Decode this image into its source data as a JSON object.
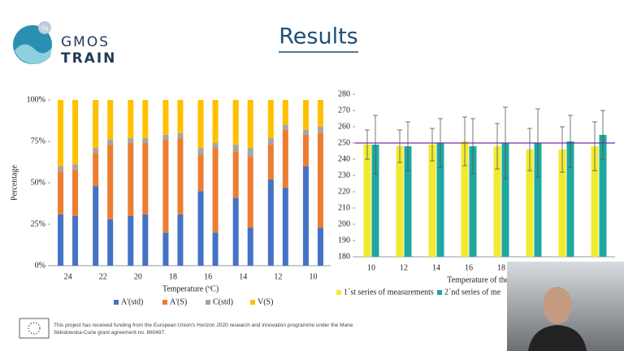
{
  "slide": {
    "title": "Results",
    "logo_badge": "Hg",
    "logo_top": "GMOS",
    "logo_bottom": "TRAIN",
    "footer": "This project has received funding from the European Union's Horizon 2020 research and innovation programme under the Marie Skłodowska-Curie grant agreement no. 860497."
  },
  "chart_data": [
    {
      "type": "stacked_bar",
      "x_label": "Temperature (ºC)",
      "y_label": "Percentage",
      "categories": [
        "24",
        "22",
        "20",
        "18",
        "16",
        "14",
        "12",
        "10"
      ],
      "ylim": [
        0,
        100
      ],
      "yticks": [
        {
          "value": 0,
          "label": "0%"
        },
        {
          "value": 25,
          "label": "25%"
        },
        {
          "value": 50,
          "label": "50%"
        },
        {
          "value": 75,
          "label": "75%"
        },
        {
          "value": 100,
          "label": "100%"
        }
      ],
      "series": [
        {
          "name": "A'(std)",
          "color": "#4472c4",
          "values": [
            [
              31,
              30
            ],
            [
              48,
              28
            ],
            [
              30,
              31
            ],
            [
              20,
              31
            ],
            [
              45,
              20
            ],
            [
              41,
              23
            ],
            [
              52,
              47
            ],
            [
              60,
              23
            ]
          ]
        },
        {
          "name": "A'(S)",
          "color": "#ed7d31",
          "values": [
            [
              26,
              28
            ],
            [
              20,
              45
            ],
            [
              44,
              43
            ],
            [
              56,
              46
            ],
            [
              22,
              51
            ],
            [
              28,
              43
            ],
            [
              21,
              35
            ],
            [
              19,
              57
            ]
          ]
        },
        {
          "name": "C(std)",
          "color": "#a5a5a5",
          "values": [
            [
              3,
              3
            ],
            [
              3,
              3
            ],
            [
              3,
              3
            ],
            [
              3,
              3
            ],
            [
              4,
              3
            ],
            [
              4,
              5
            ],
            [
              4,
              3
            ],
            [
              3,
              4
            ]
          ]
        },
        {
          "name": "V(S)",
          "color": "#ffc000",
          "values": [
            [
              40,
              39
            ],
            [
              29,
              24
            ],
            [
              23,
              23
            ],
            [
              21,
              20
            ],
            [
              29,
              26
            ],
            [
              27,
              29
            ],
            [
              23,
              15
            ],
            [
              18,
              16
            ]
          ]
        }
      ]
    },
    {
      "type": "bar",
      "x_label": "Temperature  of the bell",
      "categories": [
        "10",
        "12",
        "14",
        "16",
        "18",
        null,
        null,
        null
      ],
      "ylim": [
        180,
        280
      ],
      "yticks": [
        180,
        190,
        200,
        210,
        220,
        230,
        240,
        250,
        260,
        270,
        280
      ],
      "ref_line": 250,
      "ref_color": "#7030a0",
      "series": [
        {
          "name": "1´st series of measurements",
          "color": "#f2ea2e",
          "values": [
            249,
            248,
            249,
            251,
            248,
            246,
            246,
            248
          ],
          "errors": [
            9,
            10,
            10,
            15,
            14,
            13,
            14,
            15
          ]
        },
        {
          "name": "2´nd series of me",
          "color": "#1fa8a0",
          "values": [
            249,
            248,
            250,
            248,
            250,
            250,
            251,
            255
          ],
          "errors": [
            18,
            15,
            15,
            17,
            22,
            21,
            16,
            15
          ]
        }
      ]
    }
  ]
}
